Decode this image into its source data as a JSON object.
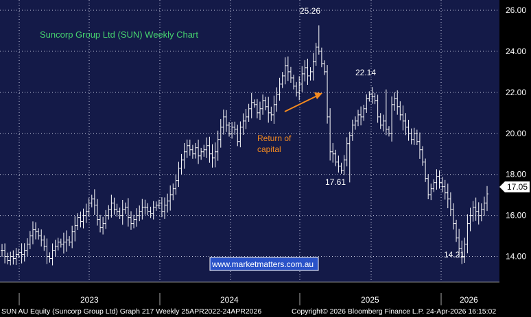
{
  "chart_data": {
    "type": "bar",
    "title": "Suncorp Group Ltd (SUN) Weekly Chart",
    "ylim": [
      12.75,
      26.5
    ],
    "yticks": [
      14.0,
      16.0,
      18.0,
      20.0,
      22.0,
      24.0,
      26.0
    ],
    "ytick_labels": [
      "14.00",
      "16.00",
      "18.00",
      "20.00",
      "22.00",
      "24.00",
      "26.00"
    ],
    "xlabels": [
      "2023",
      "2024",
      "2025",
      "2026"
    ],
    "grid": true,
    "last_price": "17.05",
    "annotations": {
      "high1": "25.26",
      "high2": "22.14",
      "low1": "17.61",
      "low2": "14.21",
      "return_of_capital": [
        "Return of",
        "capital"
      ]
    },
    "weekly_closes": [
      14.3,
      14.0,
      13.8,
      14.0,
      13.9,
      14.1,
      14.2,
      14.1,
      14.3,
      14.6,
      15.0,
      15.3,
      15.2,
      15.0,
      14.8,
      14.5,
      14.0,
      13.9,
      14.3,
      14.5,
      14.7,
      14.6,
      14.7,
      14.8,
      14.7,
      15.2,
      15.5,
      15.9,
      15.7,
      16.0,
      16.2,
      16.6,
      16.8,
      16.5,
      15.8,
      15.4,
      15.6,
      16.0,
      16.3,
      16.6,
      16.3,
      16.2,
      16.0,
      16.3,
      16.4,
      15.9,
      15.6,
      15.8,
      16.0,
      16.2,
      16.4,
      16.4,
      16.2,
      16.1,
      16.4,
      16.5,
      16.6,
      16.2,
      16.5,
      16.7,
      17.0,
      17.3,
      17.7,
      18.3,
      18.7,
      19.1,
      19.4,
      19.2,
      19.0,
      19.3,
      18.9,
      19.1,
      19.2,
      19.4,
      19.0,
      18.8,
      19.1,
      19.7,
      20.3,
      20.8,
      20.4,
      20.0,
      20.3,
      20.2,
      19.6,
      20.3,
      20.6,
      20.8,
      21.2,
      21.5,
      21.4,
      21.0,
      21.2,
      21.6,
      21.3,
      21.0,
      20.9,
      21.4,
      21.9,
      22.4,
      22.8,
      23.3,
      23.0,
      22.7,
      22.3,
      22.0,
      22.4,
      22.9,
      23.2,
      22.8,
      23.0,
      23.5,
      24.2,
      24.0,
      23.4,
      23.0,
      20.8,
      19.1,
      19.0,
      18.6,
      18.4,
      18.2,
      18.7,
      19.5,
      19.9,
      20.4,
      20.6,
      20.9,
      20.8,
      21.2,
      21.7,
      21.9,
      21.8,
      21.6,
      20.8,
      20.4,
      20.6,
      20.2,
      20.0,
      21.4,
      21.7,
      21.3,
      20.9,
      20.6,
      20.3,
      20.0,
      19.7,
      20.0,
      19.6,
      19.2,
      18.6,
      17.8,
      17.0,
      17.3,
      17.6,
      17.9,
      17.6,
      17.4,
      17.1,
      16.8,
      16.3,
      15.6,
      14.9,
      14.4,
      14.0,
      14.6,
      15.6,
      16.0,
      16.4,
      16.2,
      16.0,
      16.3,
      16.6,
      17.05
    ]
  },
  "watermark": "www.marketmatters.com.au",
  "footer": {
    "left": "SUN AU Equity (Suncorp Group Ltd) Graph 217 Weekly 25APR2022-24APR2026",
    "right": "Copyright© 2026 Bloomberg Finance L.P.      24-Apr-2026 16:15:02"
  },
  "colors": {
    "plot_bg": "#141a48",
    "grid": "#ffffff",
    "bars": "#ffffff",
    "title": "#46d36f",
    "orange": "#f58a1f",
    "watermark_bg": "#2a52c8"
  }
}
